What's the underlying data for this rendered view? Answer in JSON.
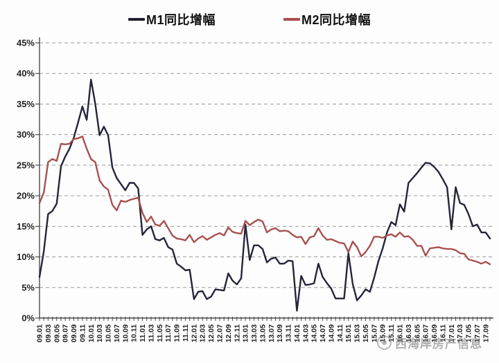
{
  "legend": {
    "items": [
      {
        "label": "M1同比增幅",
        "color": "#20202f"
      },
      {
        "label": "M2同比增幅",
        "color": "#a8504f"
      }
    ]
  },
  "watermark": {
    "text": "西海岸房产信息"
  },
  "chart_data": {
    "type": "line",
    "title": "",
    "xlabel": "",
    "ylabel": "",
    "ylim": [
      0,
      45
    ],
    "ytick_step": 5,
    "ytick_suffix": "%",
    "x_label_step": 2,
    "grid": "dashed-horizontal",
    "legend_position": "top-center",
    "colors": {
      "grid": "#999999",
      "axis": "#4a4a4a",
      "text": "#222222"
    },
    "x": [
      "09.01",
      "09.02",
      "09.03",
      "09.04",
      "09.05",
      "09.06",
      "09.07",
      "09.08",
      "09.09",
      "09.10",
      "09.11",
      "09.12",
      "10.01",
      "10.02",
      "10.03",
      "10.04",
      "10.05",
      "10.06",
      "10.07",
      "10.08",
      "10.09",
      "10.10",
      "10.11",
      "10.12",
      "11.01",
      "11.02",
      "11.03",
      "11.04",
      "11.05",
      "11.06",
      "11.07",
      "11.08",
      "11.09",
      "11.10",
      "11.11",
      "11.12",
      "12.01",
      "12.02",
      "12.03",
      "12.04",
      "12.05",
      "12.06",
      "12.07",
      "12.08",
      "12.09",
      "12.10",
      "12.11",
      "12.12",
      "13.01",
      "13.02",
      "13.03",
      "13.04",
      "13.05",
      "13.06",
      "13.07",
      "13.08",
      "13.09",
      "13.10",
      "13.11",
      "13.12",
      "14.01",
      "14.02",
      "14.03",
      "14.04",
      "14.05",
      "14.06",
      "14.07",
      "14.08",
      "14.09",
      "14.10",
      "14.11",
      "14.12",
      "15.01",
      "15.02",
      "15.03",
      "15.04",
      "15.05",
      "15.06",
      "15.07",
      "15.08",
      "15.09",
      "15.10",
      "15.11",
      "15.12",
      "16.01",
      "16.02",
      "16.03",
      "16.04",
      "16.05",
      "16.06",
      "16.07",
      "16.08",
      "16.09",
      "16.10",
      "16.11",
      "16.12",
      "17.01",
      "17.02",
      "17.03",
      "17.04",
      "17.05",
      "17.06",
      "17.07",
      "17.08",
      "17.09",
      "17.10"
    ],
    "series": [
      {
        "name": "M1同比增幅",
        "color": "#24243a",
        "values": [
          6.7,
          10.9,
          17.0,
          17.5,
          18.7,
          24.8,
          26.4,
          27.7,
          29.5,
          32.0,
          34.6,
          32.4,
          39.0,
          35.0,
          29.9,
          31.3,
          29.9,
          24.6,
          22.9,
          21.9,
          20.9,
          22.1,
          22.1,
          21.2,
          13.6,
          14.5,
          15.0,
          12.9,
          12.7,
          13.1,
          11.6,
          11.2,
          8.9,
          8.4,
          7.8,
          7.9,
          3.1,
          4.3,
          4.4,
          3.1,
          3.5,
          4.7,
          4.6,
          4.5,
          7.3,
          6.1,
          5.5,
          6.5,
          15.3,
          9.5,
          11.9,
          11.9,
          11.3,
          9.1,
          9.7,
          9.9,
          8.9,
          8.9,
          9.4,
          9.3,
          1.2,
          6.9,
          5.4,
          5.5,
          5.7,
          8.9,
          6.7,
          5.7,
          4.8,
          3.2,
          3.2,
          3.2,
          10.6,
          5.6,
          2.9,
          3.7,
          4.7,
          4.3,
          6.6,
          9.3,
          11.4,
          14.0,
          15.7,
          15.2,
          18.6,
          17.4,
          22.1,
          22.9,
          23.7,
          24.6,
          25.4,
          25.3,
          24.7,
          23.9,
          22.7,
          21.4,
          14.5,
          21.4,
          18.8,
          18.5,
          17.0,
          15.0,
          15.3,
          14.0,
          14.0,
          13.0
        ]
      },
      {
        "name": "M2同比增幅",
        "color": "#a8504f",
        "values": [
          18.8,
          20.5,
          25.5,
          26.0,
          25.7,
          28.5,
          28.4,
          28.5,
          29.3,
          29.4,
          29.7,
          27.7,
          26.0,
          25.5,
          22.5,
          21.5,
          21.0,
          18.5,
          17.6,
          19.2,
          19.0,
          19.3,
          19.5,
          19.7,
          17.2,
          15.7,
          16.6,
          15.3,
          15.1,
          15.9,
          14.7,
          13.5,
          13.0,
          12.9,
          12.7,
          13.6,
          12.4,
          13.0,
          13.4,
          12.8,
          13.2,
          13.6,
          13.9,
          13.5,
          14.8,
          14.1,
          13.9,
          13.8,
          15.9,
          15.2,
          15.7,
          16.1,
          15.8,
          14.0,
          14.5,
          14.7,
          14.2,
          14.3,
          14.2,
          13.6,
          13.2,
          13.3,
          12.1,
          13.2,
          13.4,
          14.7,
          13.5,
          12.8,
          12.9,
          12.6,
          12.3,
          12.2,
          10.8,
          12.5,
          11.6,
          10.1,
          10.8,
          11.8,
          13.3,
          13.3,
          13.1,
          13.5,
          13.7,
          13.3,
          14.0,
          13.3,
          13.4,
          12.8,
          11.8,
          11.8,
          10.2,
          11.4,
          11.5,
          11.6,
          11.4,
          11.3,
          11.3,
          11.1,
          10.6,
          10.5,
          9.6,
          9.4,
          9.2,
          8.9,
          9.2,
          8.8
        ]
      }
    ]
  }
}
